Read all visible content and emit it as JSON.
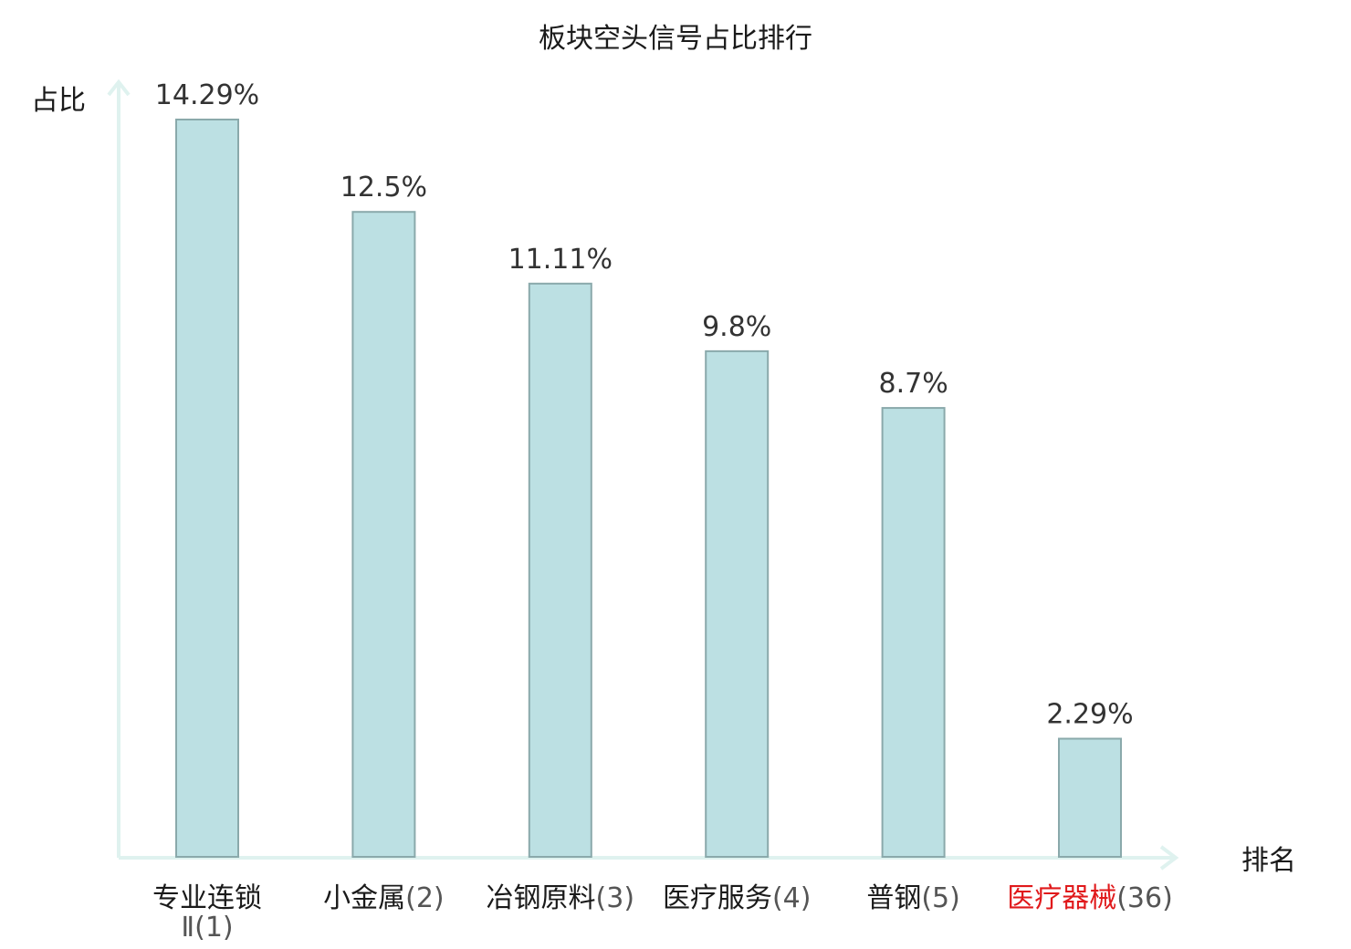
{
  "chart_data": {
    "type": "bar",
    "title": "板块空头信号占比排行",
    "ylabel": "占比",
    "xlabel": "排名",
    "categories": [
      {
        "name": "专业连锁Ⅱ",
        "rank": "(1)",
        "value": 14.29,
        "label": "14.29%"
      },
      {
        "name": "小金属",
        "rank": "(2)",
        "value": 12.5,
        "label": "12.5%"
      },
      {
        "name": "冶钢原料",
        "rank": "(3)",
        "value": 11.11,
        "label": "11.11%"
      },
      {
        "name": "医疗服务",
        "rank": "(4)",
        "value": 9.8,
        "label": "9.8%"
      },
      {
        "name": "普钢",
        "rank": "(5)",
        "value": 8.7,
        "label": "8.7%"
      },
      {
        "name": "医疗器械",
        "rank": "(36)",
        "value": 2.29,
        "label": "2.29%",
        "highlight": true
      }
    ],
    "ylim": [
      0,
      14.29
    ],
    "colors": {
      "bar_fill": "#bce0e3",
      "bar_stroke": "#8aa9ab",
      "axis": "#dff2ef",
      "text": "#1a1a1a",
      "highlight": "#e0191b"
    }
  }
}
